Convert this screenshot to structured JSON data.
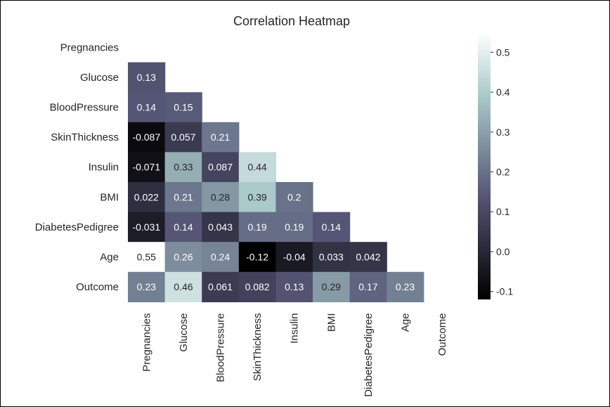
{
  "chart_data": {
    "type": "heatmap",
    "title": "Correlation Heatmap",
    "variables": [
      "Pregnancies",
      "Glucose",
      "BloodPressure",
      "SkinThickness",
      "Insulin",
      "BMI",
      "DiabetesPedigree",
      "Age",
      "Outcome"
    ],
    "mask": "upper-triangle-including-diagonal",
    "cells": [
      [],
      [
        "0.13"
      ],
      [
        "0.14",
        "0.15"
      ],
      [
        "-0.087",
        "0.057",
        "0.21"
      ],
      [
        "-0.071",
        "0.33",
        "0.087",
        "0.44"
      ],
      [
        "0.022",
        "0.21",
        "0.28",
        "0.39",
        "0.2"
      ],
      [
        "-0.031",
        "0.14",
        "0.043",
        "0.19",
        "0.19",
        "0.14"
      ],
      [
        "0.55",
        "0.26",
        "0.24",
        "-0.12",
        "-0.04",
        "0.033",
        "0.042"
      ],
      [
        "0.23",
        "0.46",
        "0.061",
        "0.082",
        "0.13",
        "0.29",
        "0.17",
        "0.23"
      ]
    ],
    "colormap": "bone",
    "vmin": -0.12,
    "vmax": 0.55,
    "colorbar_ticks": [
      "-0.1",
      "0.0",
      "0.1",
      "0.2",
      "0.3",
      "0.4",
      "0.5"
    ],
    "grid": false
  }
}
